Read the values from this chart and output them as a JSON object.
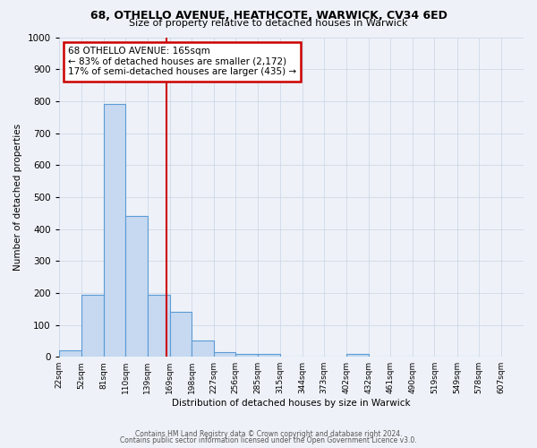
{
  "title": "68, OTHELLO AVENUE, HEATHCOTE, WARWICK, CV34 6ED",
  "subtitle": "Size of property relative to detached houses in Warwick",
  "xlabel": "Distribution of detached houses by size in Warwick",
  "ylabel": "Number of detached properties",
  "bar_edges": [
    22,
    52,
    81,
    110,
    139,
    169,
    198,
    227,
    256,
    285,
    315,
    344,
    373,
    402,
    432,
    461,
    490,
    519,
    549,
    578,
    607
  ],
  "bar_heights": [
    20,
    195,
    790,
    440,
    195,
    140,
    50,
    15,
    10,
    10,
    0,
    0,
    0,
    10,
    0,
    0,
    0,
    0,
    0,
    0
  ],
  "bar_color": "#c6d9f1",
  "bar_edge_color": "#5b9bd5",
  "bar_linewidth": 0.8,
  "grid_color": "#d0d8e8",
  "background_color": "#eef2f8",
  "red_line_x": 165,
  "red_line_color": "#cc0000",
  "annotation_text": "68 OTHELLO AVENUE: 165sqm\n← 83% of detached houses are smaller (2,172)\n17% of semi-detached houses are larger (435) →",
  "annotation_box_color": "white",
  "annotation_box_edgecolor": "#cc0000",
  "ylim": [
    0,
    1000
  ],
  "yticks": [
    0,
    100,
    200,
    300,
    400,
    500,
    600,
    700,
    800,
    900,
    1000
  ],
  "footer_line1": "Contains HM Land Registry data © Crown copyright and database right 2024.",
  "footer_line2": "Contains public sector information licensed under the Open Government Licence v3.0."
}
